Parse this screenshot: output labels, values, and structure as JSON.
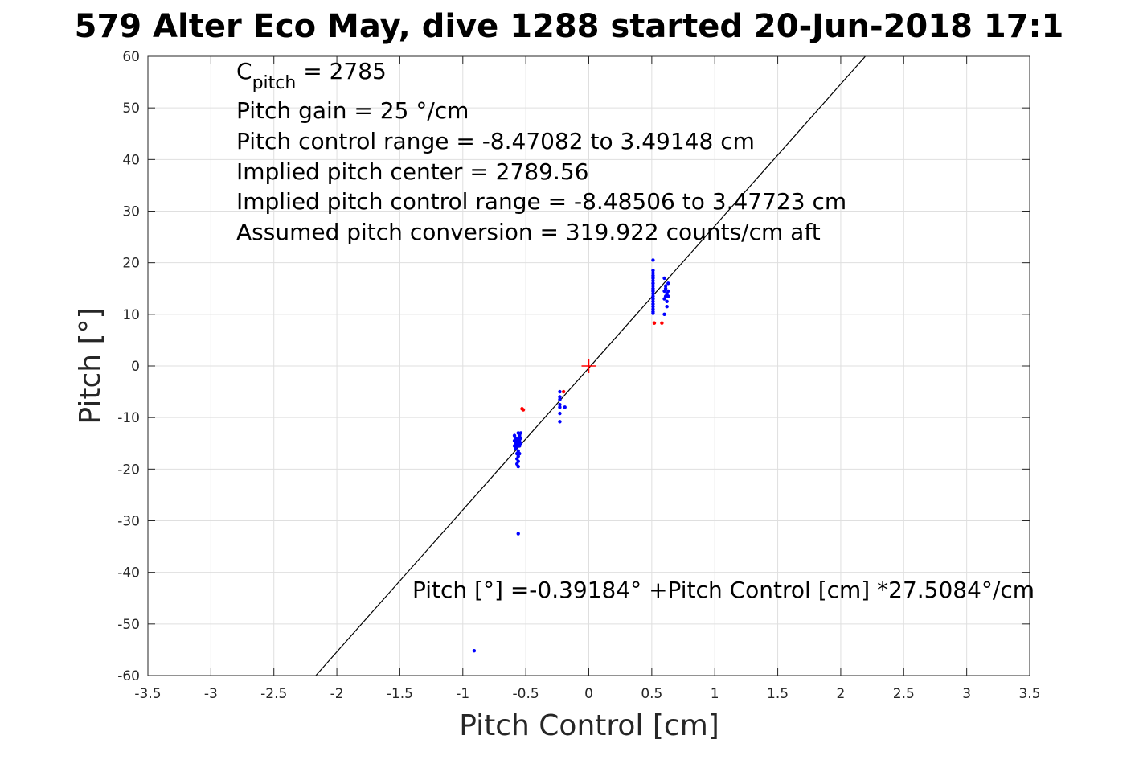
{
  "chart_data": {
    "type": "scatter",
    "title": "579 Alter Eco May, dive 1288 started 20-Jun-2018 17:1",
    "xlabel": "Pitch Control [cm]",
    "ylabel": "Pitch [°]",
    "xlim": [
      -3.5,
      3.5
    ],
    "ylim": [
      -60,
      60
    ],
    "grid": true,
    "x_ticks": [
      -3.5,
      -3,
      -2.5,
      -2,
      -1.5,
      -1,
      -0.5,
      0,
      0.5,
      1,
      1.5,
      2,
      2.5,
      3,
      3.5
    ],
    "x_tick_labels": [
      "-3.5",
      "-3",
      "-2.5",
      "-2",
      "-1.5",
      "-1",
      "-0.5",
      "0",
      "0.5",
      "1",
      "1.5",
      "2",
      "2.5",
      "3",
      "3.5"
    ],
    "y_ticks": [
      60,
      50,
      40,
      30,
      20,
      10,
      0,
      -10,
      -20,
      -30,
      -40,
      -50,
      -60
    ],
    "y_tick_labels": [
      "60",
      "50",
      "40",
      "30",
      "20",
      "10",
      "0",
      "-10",
      "-20",
      "-30",
      "-40",
      "-50",
      "-60"
    ],
    "annotations": {
      "cpitch_base": "C",
      "cpitch_sub": "pitch",
      "cpitch_value": " = 2785",
      "pitch_gain": "Pitch gain = 25 °/cm",
      "pitch_control_range": "Pitch control range = -8.47082 to 3.49148 cm",
      "implied_center": "Implied pitch center = 2789.56",
      "implied_range": "Implied pitch control range = -8.48506 to 3.47723 cm",
      "assumed_conversion": "Assumed pitch conversion = 319.922 counts/cm aft",
      "fit_equation": "Pitch [°] =-0.39184° +Pitch Control [cm] *27.5084°/cm"
    },
    "fit_line": {
      "intercept": -0.39184,
      "slope": 27.5084,
      "color": "#000000"
    },
    "center_marker": {
      "x": 0,
      "y": 0,
      "color": "#ff0000",
      "shape": "plus"
    },
    "series": [
      {
        "color": "#0000ff",
        "points": [
          {
            "x": 0.51,
            "y": 20.5
          },
          {
            "x": 0.51,
            "y": 18.5
          },
          {
            "x": 0.51,
            "y": 18.0
          },
          {
            "x": 0.51,
            "y": 17.5
          },
          {
            "x": 0.51,
            "y": 17.0
          },
          {
            "x": 0.51,
            "y": 16.5
          },
          {
            "x": 0.51,
            "y": 16.0
          },
          {
            "x": 0.51,
            "y": 15.5
          },
          {
            "x": 0.51,
            "y": 15.0
          },
          {
            "x": 0.51,
            "y": 14.5
          },
          {
            "x": 0.51,
            "y": 14.0
          },
          {
            "x": 0.51,
            "y": 13.5
          },
          {
            "x": 0.51,
            "y": 13.0
          },
          {
            "x": 0.51,
            "y": 12.5
          },
          {
            "x": 0.51,
            "y": 12.0
          },
          {
            "x": 0.51,
            "y": 11.5
          },
          {
            "x": 0.51,
            "y": 11.0
          },
          {
            "x": 0.51,
            "y": 10.5
          },
          {
            "x": 0.51,
            "y": 10.2
          },
          {
            "x": 0.6,
            "y": 17.0
          },
          {
            "x": 0.61,
            "y": 15.5
          },
          {
            "x": 0.61,
            "y": 15.0
          },
          {
            "x": 0.6,
            "y": 14.5
          },
          {
            "x": 0.62,
            "y": 14.0
          },
          {
            "x": 0.61,
            "y": 13.5
          },
          {
            "x": 0.6,
            "y": 13.0
          },
          {
            "x": 0.62,
            "y": 12.5
          },
          {
            "x": 0.63,
            "y": 16.0
          },
          {
            "x": 0.63,
            "y": 14.5
          },
          {
            "x": 0.63,
            "y": 13.5
          },
          {
            "x": 0.62,
            "y": 11.5
          },
          {
            "x": 0.6,
            "y": 10.0
          },
          {
            "x": -0.23,
            "y": -5.0
          },
          {
            "x": -0.23,
            "y": -6.0
          },
          {
            "x": -0.23,
            "y": -6.5
          },
          {
            "x": -0.23,
            "y": -7.5
          },
          {
            "x": -0.23,
            "y": -8.0
          },
          {
            "x": -0.23,
            "y": -9.2
          },
          {
            "x": -0.23,
            "y": -10.8
          },
          {
            "x": -0.19,
            "y": -8.0
          },
          {
            "x": -0.59,
            "y": -13.5
          },
          {
            "x": -0.59,
            "y": -14.5
          },
          {
            "x": -0.59,
            "y": -15.5
          },
          {
            "x": -0.58,
            "y": -14.0
          },
          {
            "x": -0.58,
            "y": -15.0
          },
          {
            "x": -0.58,
            "y": -16.0
          },
          {
            "x": -0.57,
            "y": -14.5
          },
          {
            "x": -0.57,
            "y": -15.5
          },
          {
            "x": -0.57,
            "y": -17.0
          },
          {
            "x": -0.57,
            "y": -18.0
          },
          {
            "x": -0.57,
            "y": -19.0
          },
          {
            "x": -0.56,
            "y": -13.0
          },
          {
            "x": -0.56,
            "y": -14.0
          },
          {
            "x": -0.56,
            "y": -15.0
          },
          {
            "x": -0.56,
            "y": -16.5
          },
          {
            "x": -0.56,
            "y": -17.5
          },
          {
            "x": -0.56,
            "y": -18.5
          },
          {
            "x": -0.56,
            "y": -19.5
          },
          {
            "x": -0.55,
            "y": -13.5
          },
          {
            "x": -0.55,
            "y": -14.5
          },
          {
            "x": -0.55,
            "y": -15.5
          },
          {
            "x": -0.55,
            "y": -17.0
          },
          {
            "x": -0.54,
            "y": -13.0
          },
          {
            "x": -0.54,
            "y": -14.0
          },
          {
            "x": -0.54,
            "y": -15.0
          },
          {
            "x": -0.56,
            "y": -32.5
          },
          {
            "x": -0.91,
            "y": -55.2
          }
        ]
      },
      {
        "color": "#ff0000",
        "points": [
          {
            "x": 0.52,
            "y": 8.3
          },
          {
            "x": 0.58,
            "y": 8.3
          },
          {
            "x": -0.52,
            "y": -8.5
          },
          {
            "x": -0.53,
            "y": -8.3
          },
          {
            "x": -0.2,
            "y": -5.0
          }
        ]
      }
    ]
  }
}
